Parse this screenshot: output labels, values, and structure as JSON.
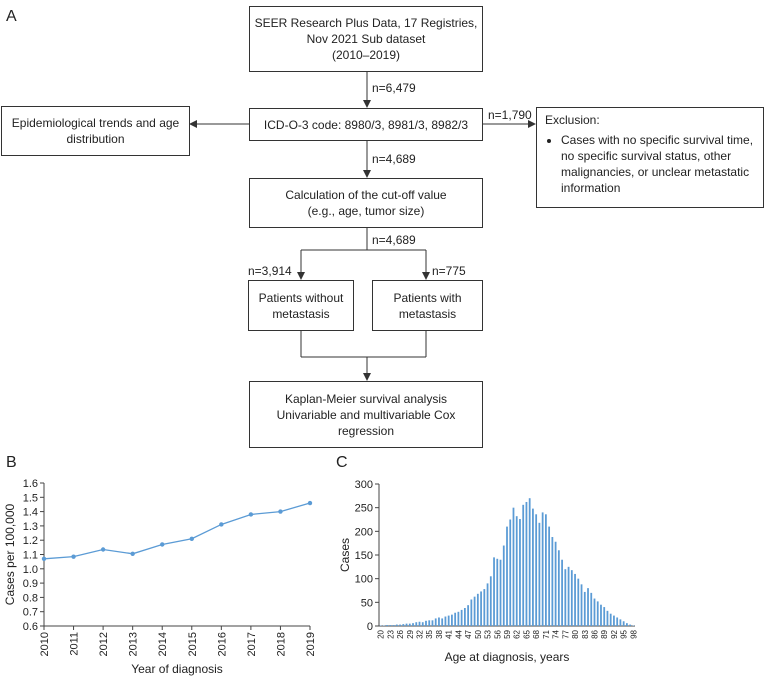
{
  "panels": {
    "a": "A",
    "b": "B",
    "c": "C"
  },
  "flow": {
    "source": [
      "SEER Research Plus Data, 17 Registries,",
      "Nov 2021 Sub dataset",
      "(2010–2019)"
    ],
    "n1": "n=6,479",
    "icd": "ICD-O-3 code: 8980/3, 8981/3, 8982/3",
    "epi": [
      "Epidemiological trends and age",
      "distribution"
    ],
    "n_excl": "n=1,790",
    "exclusion_title": "Exclusion:",
    "exclusion_item": [
      "Cases with no specific survival time,",
      "no specific survival status, other",
      "malignancies, or unclear metastatic",
      "information"
    ],
    "n2": "n=4,689",
    "cutoff": [
      "Calculation of the cut-off value",
      "(e.g., age, tumor size)"
    ],
    "n3": "n=4,689",
    "n_left": "n=3,914",
    "n_right": "n=775",
    "no_met": [
      "Patients without",
      "metastasis"
    ],
    "met": [
      "Patients with",
      "metastasis"
    ],
    "km": [
      "Kaplan-Meier survival analysis",
      "Univariable and multivariable Cox",
      "regression"
    ]
  },
  "chart_data": [
    {
      "type": "line",
      "xlabel": "Year of diagnosis",
      "ylabel": "Cases per 100,000",
      "ylim": [
        0.6,
        1.6
      ],
      "yticks": [
        "0.6",
        "0.7",
        "0.8",
        "0.9",
        "1.0",
        "1.1",
        "1.2",
        "1.3",
        "1.4",
        "1.5",
        "1.6"
      ],
      "categories": [
        "2010",
        "2011",
        "2012",
        "2013",
        "2014",
        "2015",
        "2016",
        "2017",
        "2018",
        "2019"
      ],
      "values": [
        1.07,
        1.085,
        1.135,
        1.105,
        1.17,
        1.21,
        1.31,
        1.38,
        1.4,
        1.46
      ],
      "color": "#5b9bd5",
      "grid": false
    },
    {
      "type": "bar",
      "xlabel": "Age at diagnosis, years",
      "ylabel": "Cases",
      "ylim": [
        0,
        300
      ],
      "yticks": [
        "0",
        "50",
        "100",
        "150",
        "200",
        "250",
        "300"
      ],
      "tick_labels": [
        "20",
        "23",
        "26",
        "29",
        "32",
        "35",
        "38",
        "41",
        "44",
        "47",
        "50",
        "53",
        "56",
        "59",
        "62",
        "65",
        "68",
        "71",
        "74",
        "77",
        "80",
        "83",
        "86",
        "89",
        "92",
        "95",
        "98"
      ],
      "categories": [
        20,
        21,
        22,
        23,
        24,
        25,
        26,
        27,
        28,
        29,
        30,
        31,
        32,
        33,
        34,
        35,
        36,
        37,
        38,
        39,
        40,
        41,
        42,
        43,
        44,
        45,
        46,
        47,
        48,
        49,
        50,
        51,
        52,
        53,
        54,
        55,
        56,
        57,
        58,
        59,
        60,
        61,
        62,
        63,
        64,
        65,
        66,
        67,
        68,
        69,
        70,
        71,
        72,
        73,
        74,
        75,
        76,
        77,
        78,
        79,
        80,
        81,
        82,
        83,
        84,
        85,
        86,
        87,
        88,
        89,
        90,
        91,
        92,
        93,
        94,
        95,
        96,
        97,
        98
      ],
      "values": [
        1,
        1,
        2,
        2,
        2,
        3,
        3,
        4,
        5,
        5,
        6,
        8,
        9,
        8,
        11,
        12,
        12,
        16,
        18,
        16,
        20,
        22,
        24,
        28,
        30,
        34,
        38,
        44,
        56,
        62,
        68,
        73,
        78,
        90,
        105,
        145,
        142,
        140,
        170,
        210,
        225,
        250,
        232,
        226,
        256,
        262,
        270,
        248,
        236,
        218,
        240,
        236,
        210,
        188,
        178,
        160,
        140,
        120,
        125,
        118,
        110,
        100,
        88,
        72,
        80,
        70,
        58,
        52,
        45,
        40,
        32,
        26,
        22,
        18,
        14,
        10,
        6,
        3,
        1
      ],
      "color": "#5b9bd5",
      "grid": false
    }
  ]
}
